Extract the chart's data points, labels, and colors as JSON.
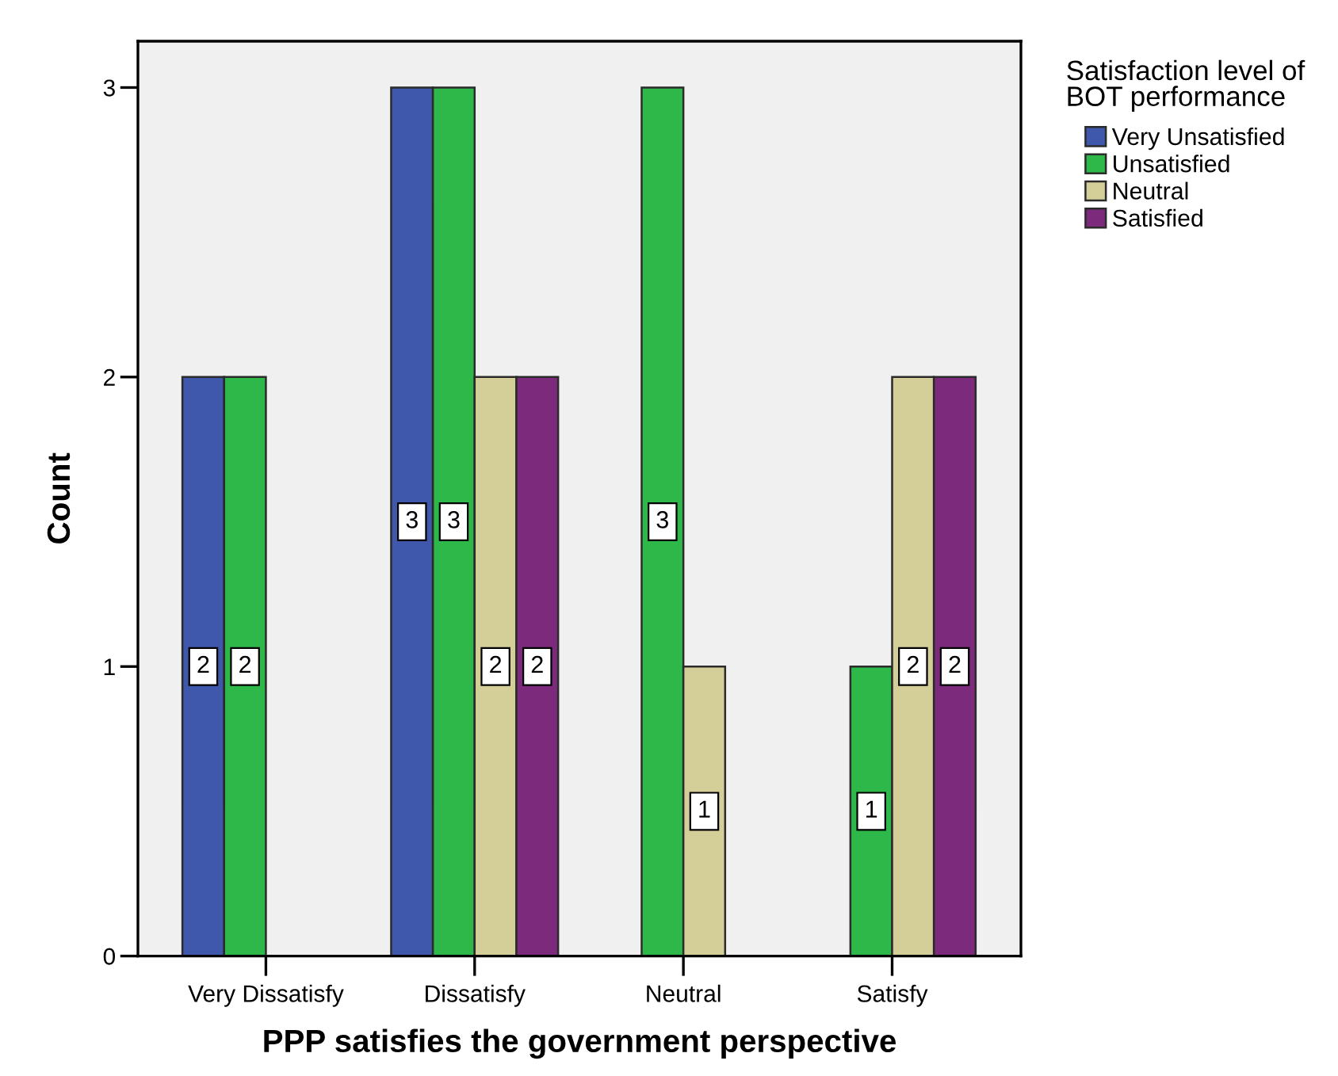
{
  "chart_data": {
    "type": "bar",
    "xlabel": "PPP satisfies the government perspective",
    "ylabel": "Count",
    "legend_title": "Satisfaction level of\nBOT performance",
    "categories": [
      "Very Dissatisfy",
      "Dissatisfy",
      "Neutral",
      "Satisfy"
    ],
    "series": [
      {
        "name": "Very Unsatisfied",
        "color": "#3f58ab",
        "values": [
          2,
          3,
          null,
          null
        ]
      },
      {
        "name": "Unsatisfied",
        "color": "#2fb84a",
        "values": [
          2,
          3,
          3,
          1
        ]
      },
      {
        "name": "Neutral",
        "color": "#d4cf98",
        "values": [
          null,
          2,
          1,
          2
        ]
      },
      {
        "name": "Satisfied",
        "color": "#7c2a7b",
        "values": [
          null,
          2,
          null,
          2
        ]
      }
    ],
    "ylim": [
      0,
      3.16
    ],
    "yticks": [
      0,
      1,
      2,
      3
    ],
    "data_labels": true,
    "legend": "right"
  }
}
